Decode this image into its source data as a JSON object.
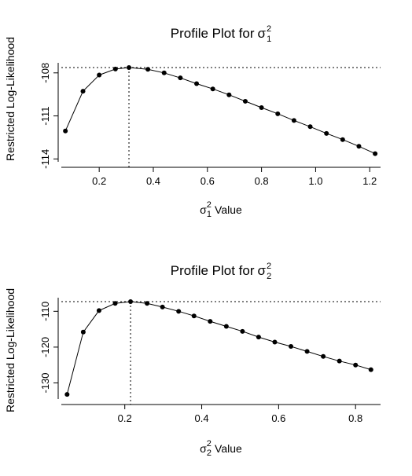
{
  "chart_data": [
    {
      "type": "line",
      "title": "Profile Plot for",
      "title_symbol": "σ",
      "title_sup": "2",
      "title_sub": "1",
      "xlabel_symbol": "σ",
      "xlabel_sup": "2",
      "xlabel_sub": "1",
      "xlabel": "Value",
      "ylabel": "Restricted Log-Likelihood",
      "xlim": [
        0.06,
        1.24
      ],
      "ylim": [
        -114.2,
        -107.3
      ],
      "x_ticks": [
        0.2,
        0.4,
        0.6,
        0.8,
        1.0,
        1.2
      ],
      "x_tick_labels": [
        "0.2",
        "0.4",
        "0.6",
        "0.8",
        "1.0",
        "1.2"
      ],
      "y_ticks": [
        -114,
        -111,
        -108
      ],
      "y_tick_labels": [
        "-114",
        "-111",
        "-108"
      ],
      "grid": false,
      "max_ref_x": 0.31,
      "max_ref_y": -107.63,
      "x": [
        0.075,
        0.14,
        0.2,
        0.26,
        0.31,
        0.38,
        0.44,
        0.5,
        0.56,
        0.62,
        0.68,
        0.74,
        0.8,
        0.86,
        0.92,
        0.98,
        1.04,
        1.1,
        1.16,
        1.22
      ],
      "y": [
        -112.05,
        -109.28,
        -108.15,
        -107.73,
        -107.63,
        -107.75,
        -108.0,
        -108.35,
        -108.75,
        -109.12,
        -109.53,
        -109.98,
        -110.42,
        -110.85,
        -111.32,
        -111.75,
        -112.22,
        -112.65,
        -113.12,
        -113.63
      ]
    },
    {
      "type": "line",
      "title": "Profile Plot for",
      "title_symbol": "σ",
      "title_sup": "2",
      "title_sub": "2",
      "xlabel_symbol": "σ",
      "xlabel_sup": "2",
      "xlabel_sub": "2",
      "xlabel": "Value",
      "ylabel": "Restricted Log-Likelihood",
      "xlim": [
        0.035,
        0.865
      ],
      "ylim": [
        -134.5,
        -106.2
      ],
      "x_ticks": [
        0.2,
        0.4,
        0.6,
        0.8
      ],
      "x_tick_labels": [
        "0.2",
        "0.4",
        "0.6",
        "0.8"
      ],
      "y_ticks": [
        -130,
        -120,
        -110
      ],
      "y_tick_labels": [
        "-130",
        "-120",
        "-110"
      ],
      "grid": false,
      "max_ref_x": 0.215,
      "max_ref_y": -107.3,
      "x": [
        0.05,
        0.092,
        0.133,
        0.175,
        0.215,
        0.258,
        0.298,
        0.34,
        0.38,
        0.422,
        0.464,
        0.506,
        0.548,
        0.59,
        0.632,
        0.674,
        0.716,
        0.758,
        0.8,
        0.84
      ],
      "y": [
        -133.2,
        -115.8,
        -109.8,
        -107.8,
        -107.3,
        -107.8,
        -108.8,
        -110.0,
        -111.3,
        -112.8,
        -114.2,
        -115.6,
        -117.2,
        -118.6,
        -119.8,
        -121.2,
        -122.6,
        -123.9,
        -125.0,
        -126.3
      ]
    }
  ]
}
